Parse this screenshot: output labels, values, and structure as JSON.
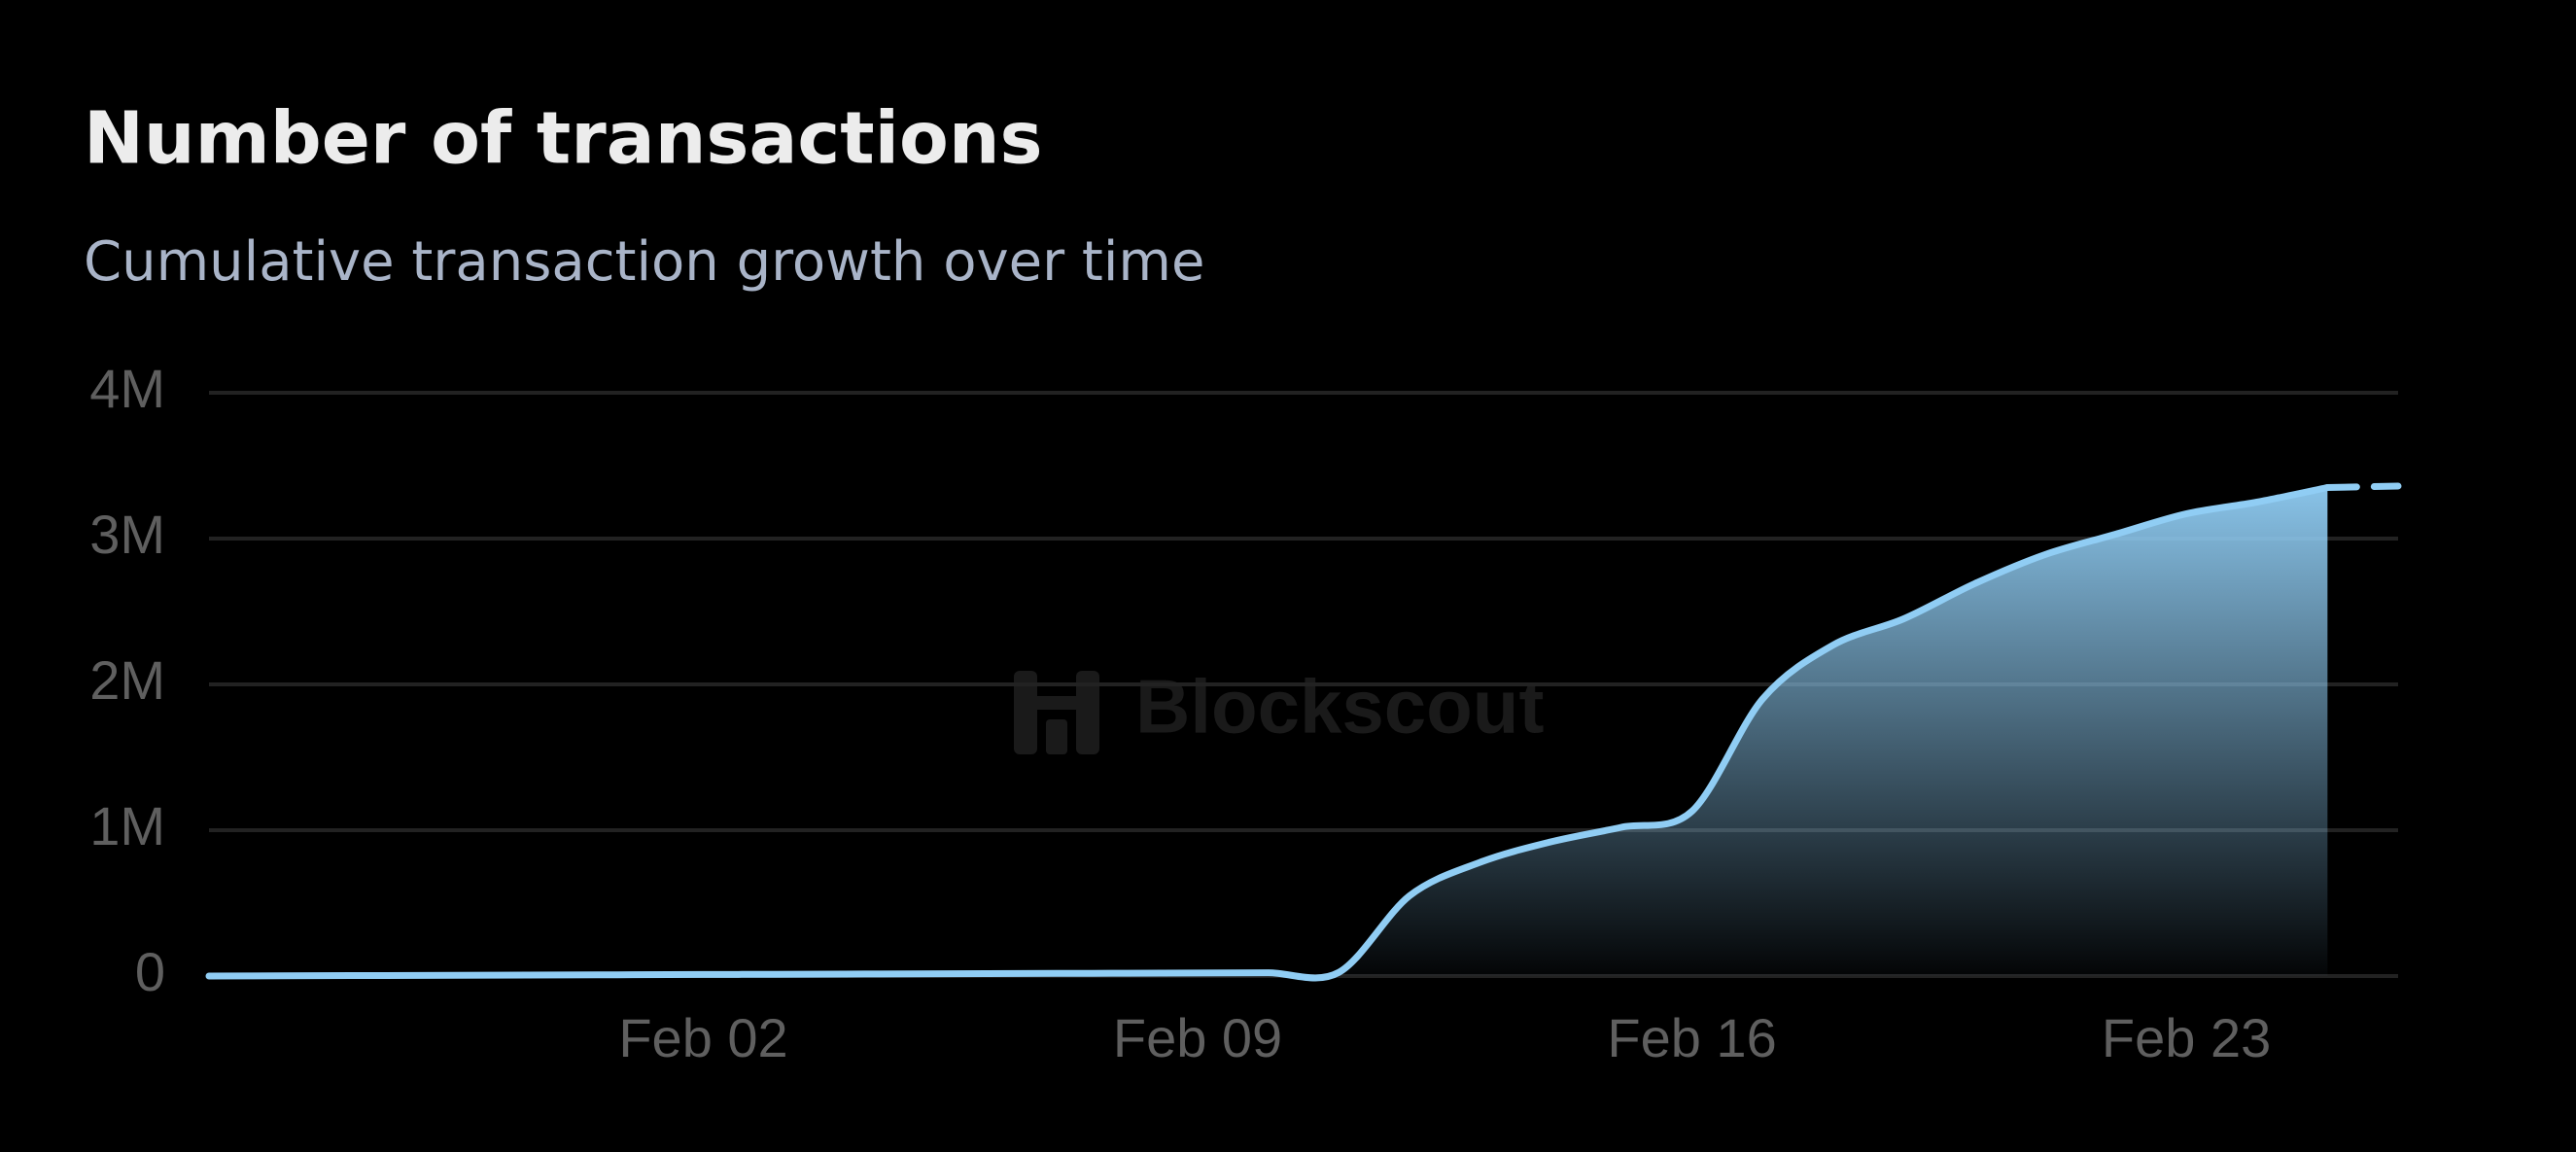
{
  "chart_data": {
    "type": "area",
    "title": "Number of transactions",
    "subtitle": "Cumulative transaction growth over time",
    "watermark": "Blockscout",
    "categories": [
      "Jan 26",
      "Jan 27",
      "Jan 28",
      "Jan 29",
      "Jan 30",
      "Jan 31",
      "Feb 01",
      "Feb 02",
      "Feb 03",
      "Feb 04",
      "Feb 05",
      "Feb 06",
      "Feb 07",
      "Feb 08",
      "Feb 09",
      "Feb 10",
      "Feb 11",
      "Feb 12",
      "Feb 13",
      "Feb 14",
      "Feb 15",
      "Feb 16",
      "Feb 17",
      "Feb 18",
      "Feb 19",
      "Feb 20",
      "Feb 21",
      "Feb 22",
      "Feb 23",
      "Feb 24",
      "Feb 25",
      "Feb 26"
    ],
    "series": [
      {
        "name": "Number of transactions",
        "color": "#90cdf4",
        "values": [
          0,
          1500,
          3000,
          4500,
          6000,
          7500,
          9000,
          10500,
          12000,
          13500,
          15000,
          16500,
          18000,
          19500,
          21000,
          22500,
          25000,
          550000,
          780000,
          920000,
          1020000,
          1130000,
          1900000,
          2270000,
          2450000,
          2690000,
          2890000,
          3030000,
          3170000,
          3250000,
          3350000,
          3360000
        ]
      }
    ],
    "incomplete_last": true,
    "ylim": [
      0,
      4000000
    ],
    "yticks": [
      0,
      {
        "value": 1000000,
        "label": "1M"
      },
      {
        "value": 2000000,
        "label": "2M"
      },
      {
        "value": 3000000,
        "label": "3M"
      },
      {
        "value": 4000000,
        "label": "4M"
      }
    ],
    "xticks": [
      "Feb 02",
      "Feb 09",
      "Feb 16",
      "Feb 23"
    ],
    "grid": true
  }
}
